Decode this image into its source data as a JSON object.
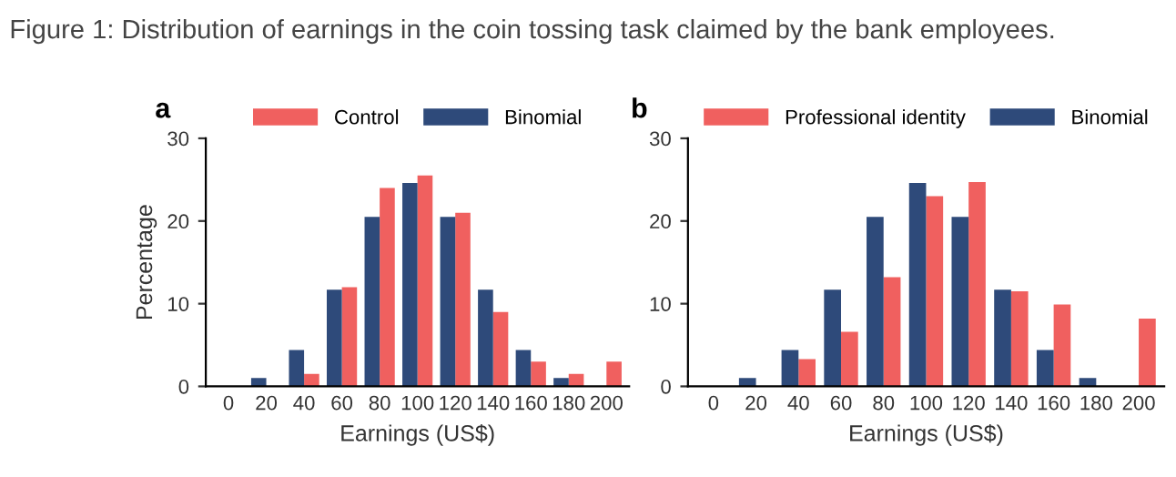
{
  "chart_data": [
    {
      "type": "bar",
      "title": "a",
      "xlabel": "Earnings (US$)",
      "ylabel": "Percentage",
      "annotations": [
        "Figure 1: Distribution of earnings in the coin tossing task claimed by the bank employees."
      ],
      "categories": [
        "0",
        "20",
        "40",
        "60",
        "80",
        "100",
        "120",
        "140",
        "160",
        "180",
        "200"
      ],
      "series": [
        {
          "name": "Control",
          "color": "#f0605f",
          "values": [
            0,
            0,
            1.5,
            12,
            24,
            25.5,
            21,
            9,
            3,
            1.5,
            3
          ]
        },
        {
          "name": "Binomial",
          "color": "#2e4a7a",
          "values": [
            null,
            1.0,
            4.4,
            11.7,
            20.5,
            24.6,
            20.5,
            11.7,
            4.4,
            1.0,
            null
          ]
        }
      ],
      "ylim": [
        0,
        30
      ],
      "yticks": [
        0,
        10,
        20,
        30
      ],
      "grid": false,
      "legend": "top"
    },
    {
      "type": "bar",
      "title": "b",
      "xlabel": "Earnings (US$)",
      "categories": [
        "0",
        "20",
        "40",
        "60",
        "80",
        "100",
        "120",
        "140",
        "160",
        "180",
        "200"
      ],
      "series": [
        {
          "name": "Professional identity",
          "color": "#f0605f",
          "values": [
            0,
            0,
            3.3,
            6.6,
            13.2,
            23,
            24.7,
            11.5,
            9.9,
            0,
            8.2
          ]
        },
        {
          "name": "Binomial",
          "color": "#2e4a7a",
          "values": [
            null,
            1.0,
            4.4,
            11.7,
            20.5,
            24.6,
            20.5,
            11.7,
            4.4,
            1.0,
            null
          ]
        }
      ],
      "ylim": [
        0,
        30
      ],
      "yticks": [
        0,
        10,
        20,
        30
      ],
      "grid": false,
      "legend": "top"
    }
  ]
}
